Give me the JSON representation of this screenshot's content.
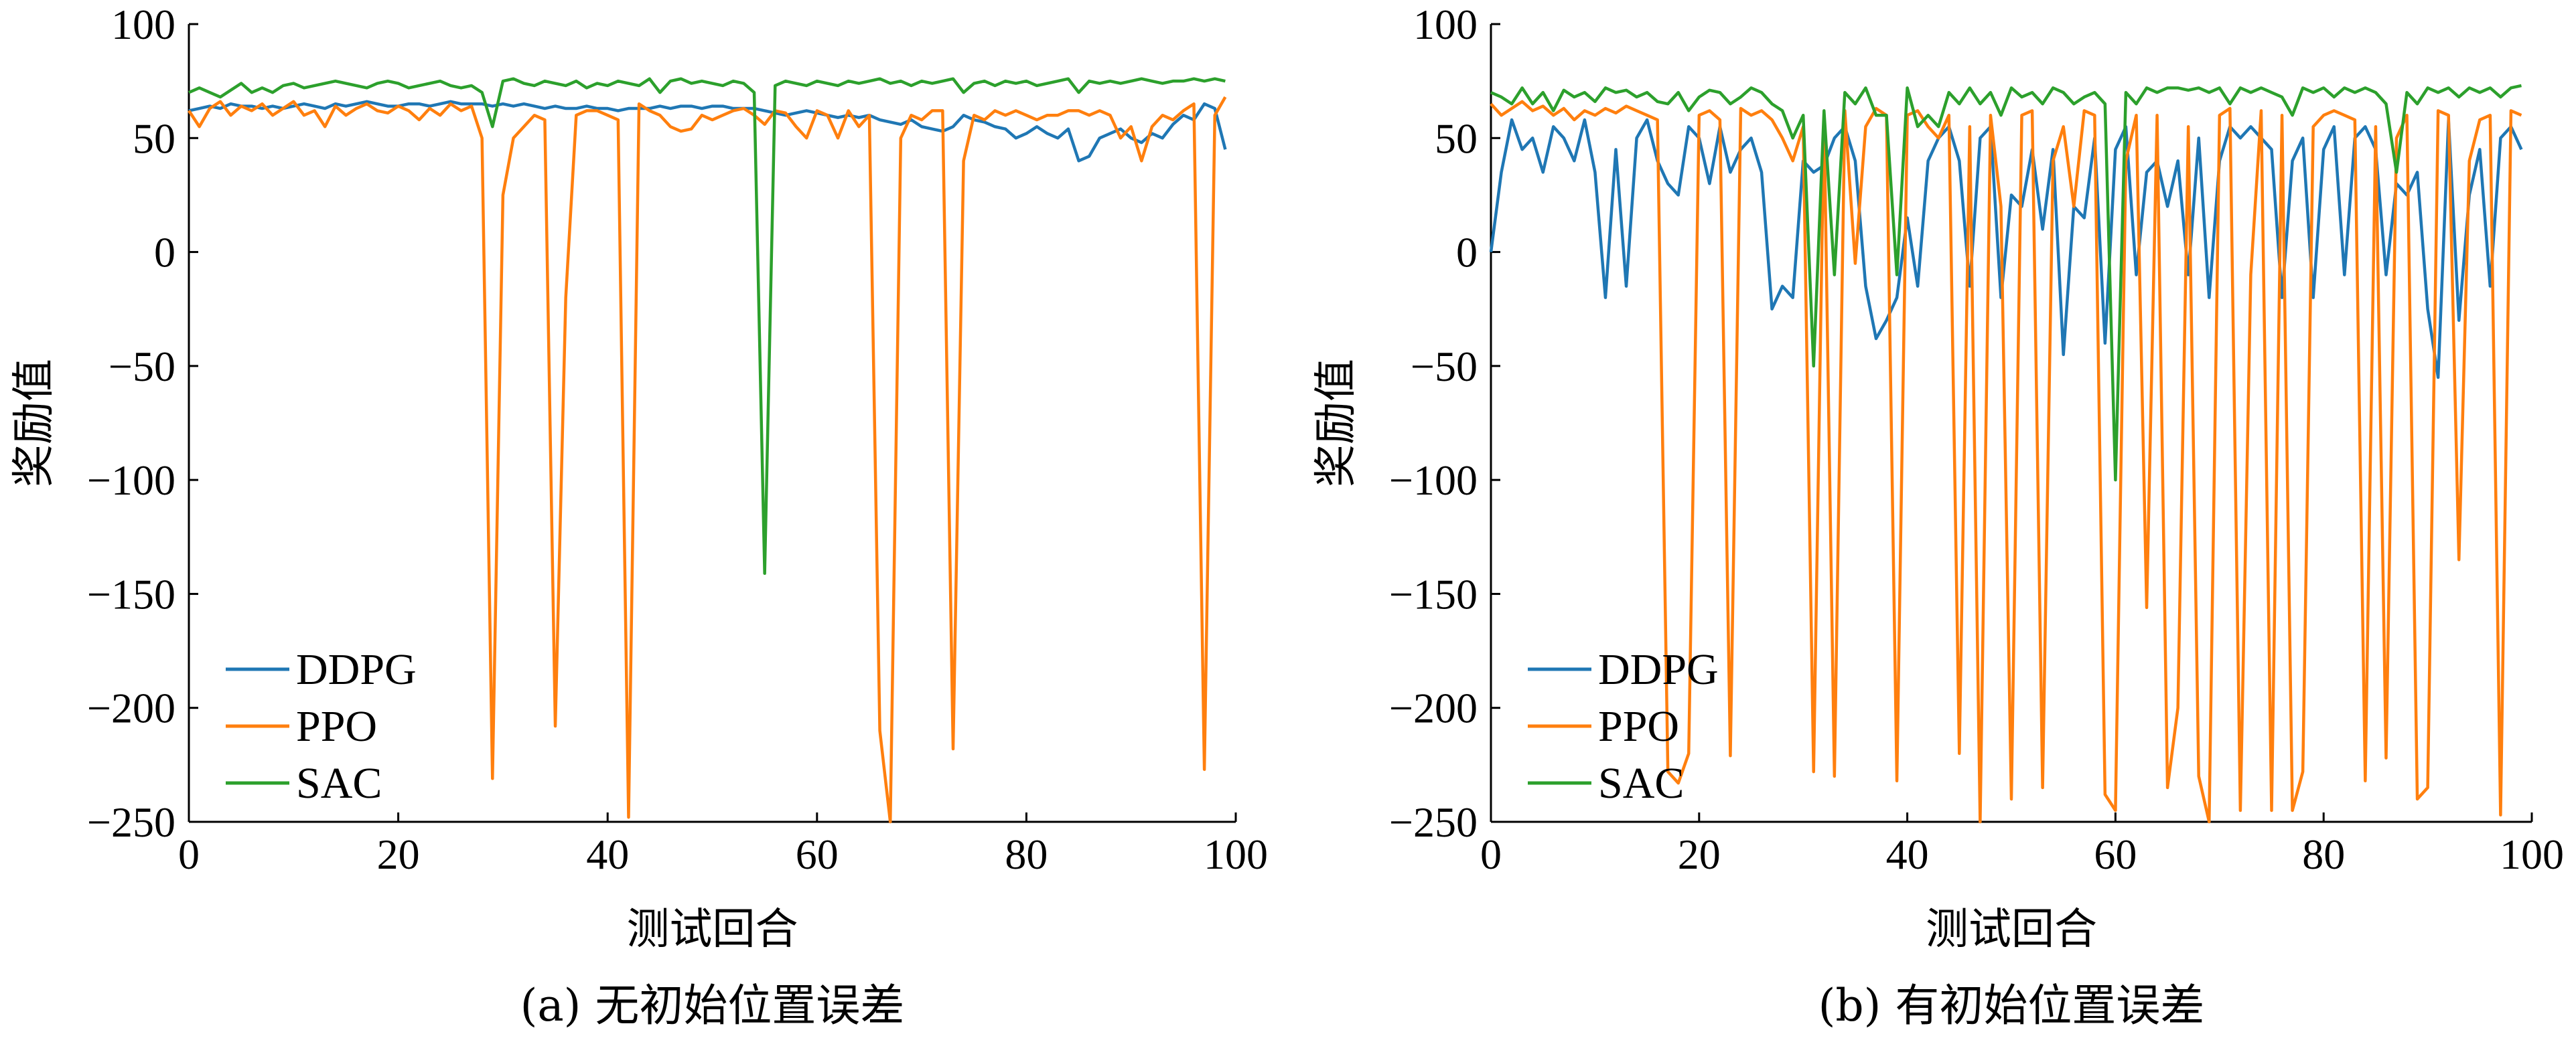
{
  "chart_data": [
    {
      "type": "line",
      "caption": "(a) 无初始位置误差",
      "xlabel": "测试回合",
      "ylabel": "奖励值",
      "xlim": [
        0,
        100
      ],
      "ylim": [
        -250,
        100
      ],
      "xticks": [
        "0",
        "20",
        "40",
        "60",
        "80",
        "100"
      ],
      "yticks": [
        "100",
        "50",
        "0",
        "−50",
        "−100",
        "−150",
        "−200",
        "−250"
      ],
      "legend": "lower-left",
      "series": [
        {
          "name": "DDPG",
          "color": "#1f77b4",
          "values": [
            62,
            63,
            64,
            63,
            65,
            64,
            64,
            63,
            64,
            63,
            64,
            65,
            64,
            63,
            65,
            64,
            65,
            66,
            65,
            64,
            64,
            65,
            65,
            64,
            65,
            66,
            65,
            65,
            65,
            64,
            65,
            64,
            65,
            64,
            63,
            64,
            63,
            63,
            64,
            63,
            63,
            62,
            63,
            63,
            63,
            64,
            63,
            64,
            64,
            63,
            64,
            64,
            63,
            63,
            63,
            62,
            61,
            60,
            61,
            62,
            61,
            60,
            59,
            60,
            59,
            60,
            58,
            57,
            56,
            58,
            55,
            54,
            53,
            55,
            60,
            58,
            57,
            55,
            54,
            50,
            52,
            55,
            52,
            50,
            54,
            40,
            42,
            50,
            52,
            54,
            50,
            48,
            52,
            50,
            56,
            60,
            58,
            65,
            63,
            45
          ]
        },
        {
          "name": "PPO",
          "color": "#ff7f0e",
          "values": [
            62,
            55,
            63,
            66,
            60,
            64,
            62,
            65,
            60,
            63,
            66,
            60,
            62,
            55,
            64,
            60,
            63,
            65,
            62,
            61,
            64,
            62,
            58,
            63,
            60,
            65,
            62,
            64,
            50,
            -231,
            25,
            50,
            55,
            60,
            58,
            -208,
            -20,
            60,
            62,
            62,
            60,
            58,
            -248,
            65,
            62,
            60,
            55,
            53,
            54,
            60,
            58,
            60,
            62,
            63,
            60,
            56,
            62,
            61,
            55,
            50,
            62,
            60,
            50,
            62,
            55,
            60,
            -210,
            -250,
            50,
            60,
            58,
            62,
            62,
            -218,
            40,
            60,
            58,
            62,
            60,
            62,
            60,
            58,
            60,
            60,
            62,
            62,
            60,
            62,
            60,
            50,
            55,
            40,
            55,
            60,
            58,
            62,
            65,
            -227,
            60,
            68
          ]
        },
        {
          "name": "SAC",
          "color": "#2ca02c",
          "values": [
            70,
            72,
            70,
            68,
            71,
            74,
            70,
            72,
            70,
            73,
            74,
            72,
            73,
            74,
            75,
            74,
            73,
            72,
            74,
            75,
            74,
            72,
            73,
            74,
            75,
            73,
            72,
            73,
            70,
            55,
            75,
            76,
            74,
            73,
            75,
            74,
            73,
            75,
            72,
            74,
            73,
            75,
            74,
            73,
            76,
            70,
            75,
            76,
            74,
            75,
            74,
            73,
            75,
            74,
            70,
            -141,
            73,
            75,
            74,
            73,
            75,
            74,
            73,
            75,
            74,
            75,
            76,
            74,
            75,
            73,
            75,
            74,
            75,
            76,
            70,
            74,
            75,
            73,
            75,
            74,
            75,
            73,
            74,
            75,
            76,
            70,
            75,
            74,
            75,
            74,
            75,
            76,
            75,
            74,
            75,
            75,
            76,
            75,
            76,
            75
          ]
        }
      ]
    },
    {
      "type": "line",
      "caption": "(b) 有初始位置误差",
      "xlabel": "测试回合",
      "ylabel": "奖励值",
      "xlim": [
        0,
        100
      ],
      "ylim": [
        -250,
        100
      ],
      "xticks": [
        "0",
        "20",
        "40",
        "60",
        "80",
        "100"
      ],
      "yticks": [
        "100",
        "50",
        "0",
        "−50",
        "−100",
        "−150",
        "−200",
        "−250"
      ],
      "legend": "lower-left",
      "series": [
        {
          "name": "DDPG",
          "color": "#1f77b4",
          "values": [
            0,
            35,
            58,
            45,
            50,
            35,
            55,
            50,
            40,
            58,
            35,
            -20,
            45,
            -15,
            50,
            58,
            40,
            30,
            25,
            55,
            50,
            30,
            55,
            35,
            45,
            50,
            35,
            -25,
            -15,
            -20,
            40,
            35,
            38,
            50,
            55,
            40,
            -15,
            -38,
            -30,
            -20,
            15,
            -15,
            40,
            50,
            55,
            40,
            -15,
            50,
            55,
            -20,
            25,
            20,
            45,
            10,
            45,
            -45,
            20,
            15,
            50,
            -40,
            45,
            55,
            -10,
            35,
            40,
            20,
            40,
            -10,
            50,
            -20,
            40,
            55,
            50,
            55,
            50,
            45,
            -20,
            40,
            50,
            -20,
            45,
            55,
            -10,
            50,
            55,
            45,
            -10,
            30,
            25,
            35,
            -25,
            -55,
            58,
            -30,
            25,
            45,
            -15,
            50,
            55,
            45
          ]
        },
        {
          "name": "PPO",
          "color": "#ff7f0e",
          "values": [
            65,
            60,
            63,
            66,
            62,
            64,
            60,
            63,
            58,
            62,
            60,
            63,
            61,
            64,
            62,
            60,
            58,
            -228,
            -233,
            -220,
            60,
            62,
            58,
            -221,
            63,
            60,
            62,
            58,
            50,
            40,
            55,
            -228,
            60,
            -230,
            62,
            -5,
            55,
            63,
            60,
            -232,
            60,
            62,
            55,
            50,
            60,
            -220,
            55,
            -250,
            60,
            20,
            -240,
            60,
            62,
            -235,
            40,
            55,
            20,
            62,
            60,
            -238,
            -245,
            40,
            60,
            -156,
            60,
            -235,
            -200,
            55,
            -230,
            -250,
            60,
            63,
            -245,
            -10,
            62,
            -245,
            60,
            -245,
            -228,
            55,
            60,
            62,
            60,
            58,
            -232,
            55,
            -222,
            50,
            60,
            -240,
            -235,
            62,
            60,
            -135,
            40,
            58,
            60,
            -247,
            62,
            60
          ]
        },
        {
          "name": "SAC",
          "color": "#2ca02c",
          "values": [
            70,
            68,
            65,
            72,
            65,
            70,
            62,
            71,
            68,
            70,
            66,
            72,
            70,
            71,
            68,
            70,
            66,
            65,
            70,
            62,
            68,
            71,
            70,
            65,
            68,
            72,
            70,
            65,
            62,
            50,
            60,
            -50,
            62,
            -10,
            70,
            65,
            72,
            60,
            60,
            -10,
            72,
            55,
            60,
            55,
            70,
            65,
            72,
            65,
            70,
            60,
            72,
            68,
            70,
            65,
            72,
            70,
            65,
            68,
            70,
            65,
            -100,
            70,
            65,
            72,
            70,
            72,
            72,
            71,
            72,
            70,
            72,
            65,
            72,
            70,
            72,
            70,
            68,
            60,
            72,
            70,
            72,
            68,
            72,
            70,
            72,
            70,
            65,
            35,
            70,
            65,
            72,
            70,
            72,
            68,
            72,
            70,
            72,
            68,
            72,
            73
          ]
        }
      ]
    }
  ]
}
